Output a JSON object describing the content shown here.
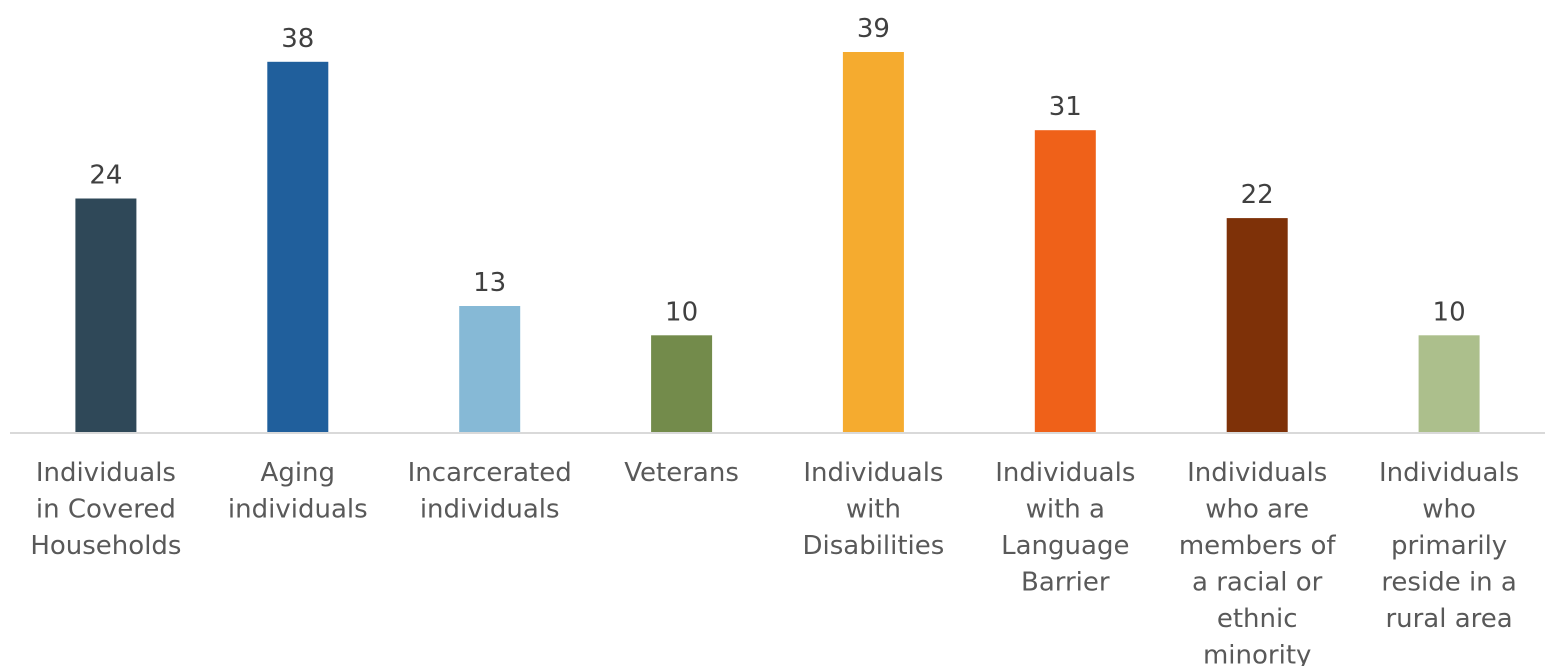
{
  "chart_data": {
    "type": "bar",
    "title": "",
    "xlabel": "",
    "ylabel": "",
    "ylim": [
      0,
      39
    ],
    "grid": false,
    "legend": "none",
    "categories": [
      [
        "Individuals",
        "in Covered",
        "Households"
      ],
      [
        "Aging",
        "individuals"
      ],
      [
        "Incarcerated",
        "individuals"
      ],
      [
        "Veterans"
      ],
      [
        "Individuals",
        "with",
        "Disabilities"
      ],
      [
        "Individuals",
        "with a",
        "Language",
        "Barrier"
      ],
      [
        "Individuals",
        "who are",
        "members of",
        "a racial or",
        "ethnic",
        "minority"
      ],
      [
        "Individuals",
        "who",
        "primarily",
        "reside in a",
        "rural area"
      ]
    ],
    "values": [
      24,
      38,
      13,
      10,
      39,
      31,
      22,
      10
    ],
    "colors": [
      "#2f4858",
      "#205f9c",
      "#86b9d6",
      "#738b4b",
      "#f5ab2f",
      "#ef6119",
      "#7e3108",
      "#acbf8c"
    ]
  }
}
